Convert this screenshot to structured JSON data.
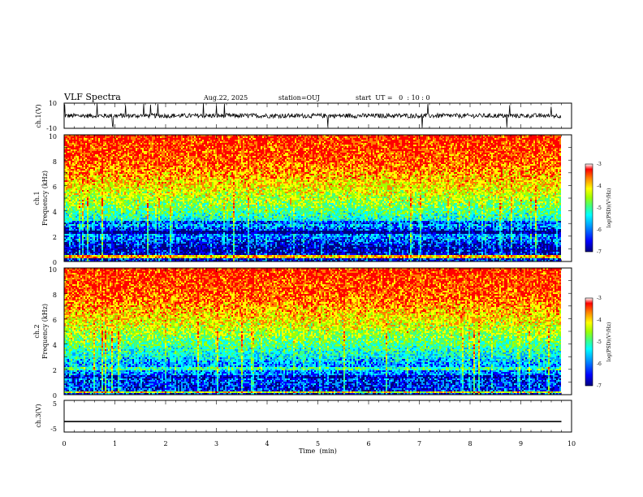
{
  "header": {
    "title": "VLF Spectra",
    "date": "Aug.22, 2025",
    "station": "station=OUJ",
    "start": "start  UT =   0  : 10 : 0"
  },
  "colors": {
    "background": "#ffffff",
    "axis": "#000000",
    "waveform": "#000000",
    "colormap": [
      "#00007f",
      "#0000ff",
      "#00a0ff",
      "#00ffff",
      "#40ff80",
      "#a0ff00",
      "#ffff00",
      "#ff8000",
      "#ff0000",
      "#ffffff"
    ]
  },
  "chart_data": [
    {
      "type": "line",
      "panel": "ch1-waveform",
      "ylabel": "ch.1(V)",
      "ylim": [
        -10,
        10
      ],
      "yticks": [
        "10",
        "-10"
      ],
      "xlim": [
        0,
        9.8
      ],
      "series": [
        {
          "name": "ch.1",
          "baseline": 0,
          "typical_amplitude": 3,
          "spike_amplitude": 10
        }
      ]
    },
    {
      "type": "heatmap",
      "panel": "ch1-spectrogram",
      "xlabel": "",
      "ylabel": "Frequency  (kHz)",
      "channel_label": "ch.1",
      "ylim": [
        0,
        10
      ],
      "yticks": [
        "0",
        "2",
        "4",
        "6",
        "8",
        "10"
      ],
      "xlim": [
        0,
        9.8
      ],
      "colorbar": {
        "label": "log(PSD)(V²/Hz)",
        "range": [
          -7,
          -3
        ],
        "ticks": [
          "-3",
          "-4",
          "-5",
          "-6",
          "-7"
        ]
      },
      "profile": [
        {
          "freq_khz": 0.5,
          "log_psd": -6.5
        },
        {
          "freq_khz": 1.0,
          "log_psd": -6.7
        },
        {
          "freq_khz": 1.5,
          "log_psd": -6.3
        },
        {
          "freq_khz": 2.0,
          "log_psd": -5.9
        },
        {
          "freq_khz": 2.5,
          "log_psd": -6.3
        },
        {
          "freq_khz": 3.0,
          "log_psd": -5.6
        },
        {
          "freq_khz": 4.0,
          "log_psd": -5.0
        },
        {
          "freq_khz": 5.0,
          "log_psd": -4.5
        },
        {
          "freq_khz": 6.0,
          "log_psd": -4.1
        },
        {
          "freq_khz": 8.0,
          "log_psd": -3.5
        },
        {
          "freq_khz": 10.0,
          "log_psd": -3.3
        }
      ]
    },
    {
      "type": "heatmap",
      "panel": "ch2-spectrogram",
      "xlabel": "",
      "ylabel": "Frequency  (kHz)",
      "channel_label": "ch.2",
      "ylim": [
        0,
        10
      ],
      "yticks": [
        "0",
        "2",
        "4",
        "6",
        "8",
        "10"
      ],
      "xlim": [
        0,
        9.8
      ],
      "colorbar": {
        "label": "log(PSD)(V²/Hz)",
        "range": [
          -7,
          -3
        ],
        "ticks": [
          "-3",
          "-4",
          "-5",
          "-6",
          "-7"
        ]
      },
      "profile": [
        {
          "freq_khz": 0.5,
          "log_psd": -6.3
        },
        {
          "freq_khz": 1.0,
          "log_psd": -6.3
        },
        {
          "freq_khz": 1.5,
          "log_psd": -6.0
        },
        {
          "freq_khz": 2.0,
          "log_psd": -5.9
        },
        {
          "freq_khz": 2.5,
          "log_psd": -5.8
        },
        {
          "freq_khz": 3.0,
          "log_psd": -5.5
        },
        {
          "freq_khz": 4.0,
          "log_psd": -5.0
        },
        {
          "freq_khz": 5.0,
          "log_psd": -4.5
        },
        {
          "freq_khz": 6.0,
          "log_psd": -4.1
        },
        {
          "freq_khz": 8.0,
          "log_psd": -3.5
        },
        {
          "freq_khz": 10.0,
          "log_psd": -3.3
        }
      ]
    },
    {
      "type": "line",
      "panel": "ch3-waveform",
      "ylabel": "ch.3(V)",
      "ylim": [
        -5,
        5
      ],
      "yticks": [
        "5",
        "-5"
      ],
      "xlim": [
        0,
        9.8
      ],
      "series": [
        {
          "name": "ch.3",
          "constant_value": -1.7
        }
      ]
    },
    {
      "type": "axis",
      "panel": "time-axis",
      "xlabel": "Time  (min)",
      "xlim": [
        0,
        10
      ],
      "xticks": [
        "0",
        "1",
        "2",
        "3",
        "4",
        "5",
        "6",
        "7",
        "8",
        "9",
        "10"
      ]
    }
  ]
}
